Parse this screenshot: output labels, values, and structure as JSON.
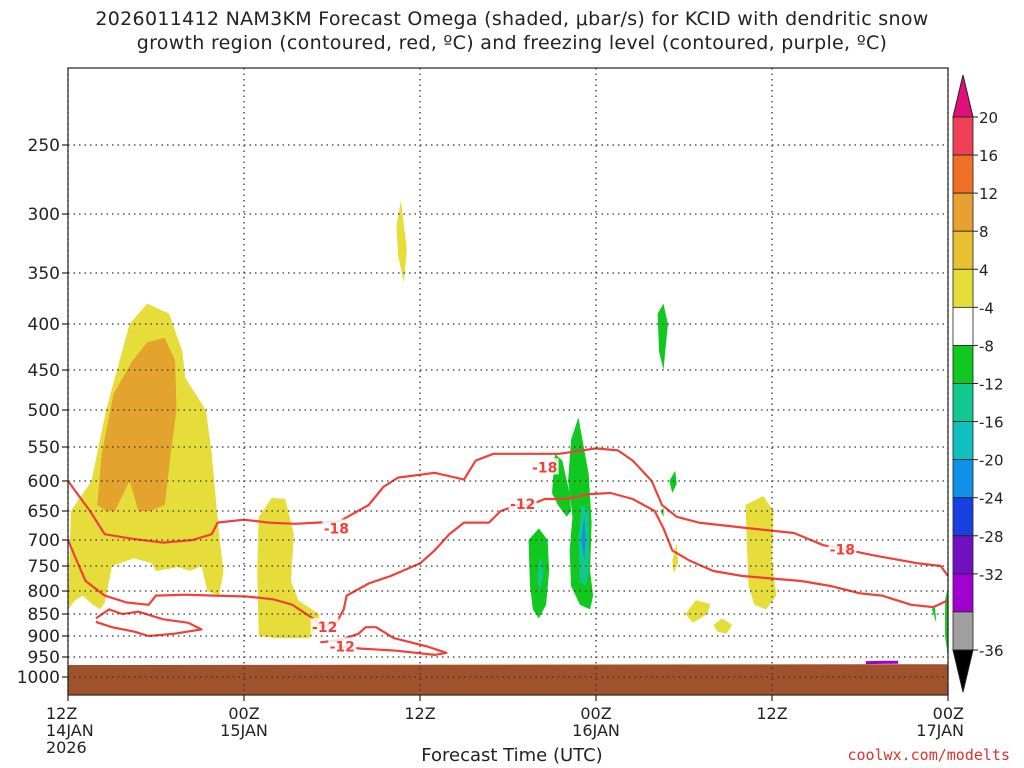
{
  "chart_data": {
    "type": "contour",
    "title_line1": "2026011412 NAM3KM Forecast Omega (shaded, μbar/s) for KCID with dendritic snow",
    "title_line2": "growth region (contoured, red, ºC) and freezing level (contoured, purple, ºC)",
    "xlabel": "Forecast Time (UTC)",
    "ylabel": "",
    "credit": "coolwx.com/modelts",
    "x_unit": "hours since 2026-01-14 12Z",
    "xlim": [
      0,
      60
    ],
    "ylim": [
      1050,
      200
    ],
    "x_ticks": [
      {
        "hour": 0,
        "line1": "12Z",
        "line2": "14JAN",
        "line3": "2026"
      },
      {
        "hour": 12,
        "line1": "00Z",
        "line2": "15JAN",
        "line3": ""
      },
      {
        "hour": 24,
        "line1": "12Z",
        "line2": "",
        "line3": ""
      },
      {
        "hour": 36,
        "line1": "00Z",
        "line2": "16JAN",
        "line3": ""
      },
      {
        "hour": 48,
        "line1": "12Z",
        "line2": "",
        "line3": ""
      },
      {
        "hour": 60,
        "line1": "00Z",
        "line2": "17JAN",
        "line3": ""
      }
    ],
    "y_ticks": [
      250,
      300,
      350,
      400,
      450,
      500,
      550,
      600,
      650,
      700,
      750,
      800,
      850,
      900,
      950,
      1000
    ],
    "colorbar": {
      "labels": [
        "20",
        "16",
        "12",
        "8",
        "4",
        "-4",
        "-8",
        "-12",
        "-16",
        "-20",
        "-24",
        "-28",
        "-32",
        "-36"
      ],
      "colors": [
        "#f04058",
        "#f07028",
        "#e8a030",
        "#e8c030",
        "#e6dc3a",
        "#ffffff",
        "#10c820",
        "#10c890",
        "#10c0c0",
        "#1090e8",
        "#1840e0",
        "#7010c0",
        "#a000d0",
        "#a0a0a0"
      ],
      "top_arrow": "#e0107a",
      "bottom_arrow": "#000000"
    },
    "contour_labels": [
      {
        "text": "-18",
        "hour": 18.3,
        "p": 680
      },
      {
        "text": "-18",
        "hour": 32.5,
        "p": 580
      },
      {
        "text": "-12",
        "hour": 31.0,
        "p": 638
      },
      {
        "text": "-18",
        "hour": 52.8,
        "p": 718
      },
      {
        "text": "-12",
        "hour": 17.5,
        "p": 880
      },
      {
        "text": "-12",
        "hour": 18.7,
        "p": 925
      }
    ],
    "shading": {
      "positive_color": "#e6dc3a",
      "strong_positive_color": "#e3a32d",
      "negative_color": "#10c820",
      "strong_negative_color": "#10c890",
      "core_negative_color": "#1090e8",
      "ground_color": "#a0522d",
      "freezing_color": "#a000d0",
      "dgz_color": "#f0403a"
    }
  }
}
